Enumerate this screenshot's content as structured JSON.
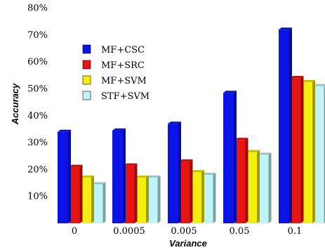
{
  "chart_data": {
    "type": "bar",
    "style": "3d",
    "xlabel": "Variance",
    "ylabel": "Accuracy",
    "categories": [
      "0",
      "0.0005",
      "0.005",
      "0.05",
      "0.1"
    ],
    "ylim": [
      0,
      80
    ],
    "yticks": [
      "10%",
      "20%",
      "30%",
      "40%",
      "50%",
      "60%",
      "70%",
      "80%"
    ],
    "grid": false,
    "legend_position": "top-left",
    "series": [
      {
        "name": "MF+CSC",
        "color": "#0a14e6",
        "values": [
          34,
          34.5,
          37,
          48.5,
          72
        ]
      },
      {
        "name": "MF+SRC",
        "color": "#e81414",
        "values": [
          21,
          21.5,
          23,
          31,
          54
        ]
      },
      {
        "name": "MF+SVM",
        "color": "#f5ef10",
        "values": [
          17,
          17,
          19,
          26.5,
          52.5
        ]
      },
      {
        "name": "STF+SVM",
        "color": "#bff5f8",
        "values": [
          14.5,
          17,
          18,
          25.5,
          51
        ]
      }
    ]
  }
}
